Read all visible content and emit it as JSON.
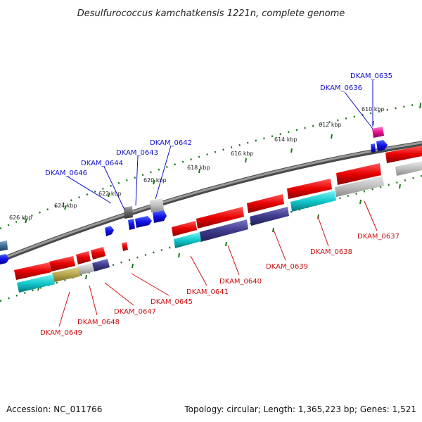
{
  "title": "Desulfurococcus kamchatkensis 1221n, complete genome",
  "footer": {
    "accession": "Accession: NC_011766",
    "summary": "Topology: circular; Length: 1,365,223 bp; Genes: 1,521"
  },
  "colors": {
    "forward_label": "#1010cc",
    "reverse_label": "#cc1010",
    "tick": "#1a7a1a",
    "backbone": "#7a7a7a"
  },
  "ticks": [
    "610 kbp",
    "612 kbp",
    "614 kbp",
    "616 kbp",
    "618 kbp",
    "620 kbp",
    "622 kbp",
    "624 kbp",
    "626 kbp"
  ],
  "forward_genes": [
    "DKAM_0635",
    "DKAM_0636",
    "DKAM_0642",
    "DKAM_0643",
    "DKAM_0644",
    "DKAM_0646"
  ],
  "reverse_genes": [
    "DKAM_0637",
    "DKAM_0638",
    "DKAM_0639",
    "DKAM_0640",
    "DKAM_0641",
    "DKAM_0645",
    "DKAM_0647",
    "DKAM_0648",
    "DKAM_0649"
  ]
}
